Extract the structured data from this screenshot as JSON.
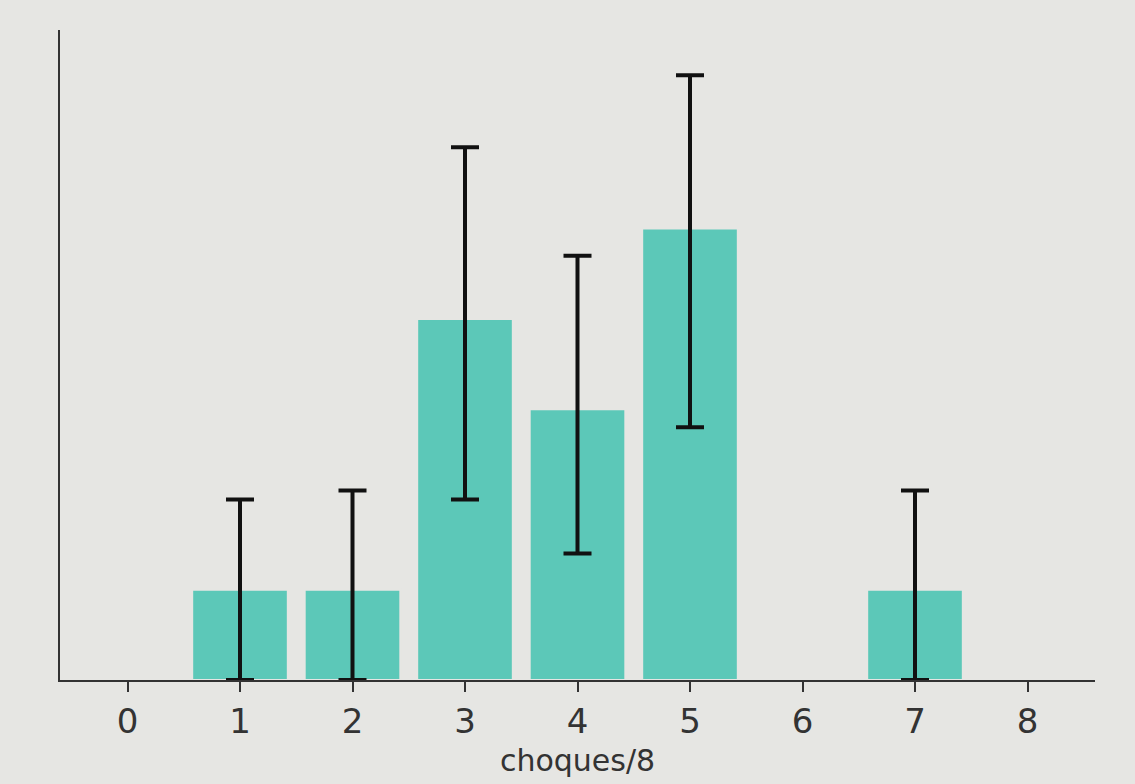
{
  "chart_data": {
    "type": "bar",
    "x_label": "choques/8",
    "x": [
      1,
      2,
      3,
      4,
      5,
      7
    ],
    "values": [
      1,
      1,
      4,
      3,
      5,
      1
    ],
    "error_plus": [
      1,
      1.1,
      1.9,
      1.7,
      1.7,
      1.1
    ],
    "error_minus": [
      1,
      1,
      2,
      1.6,
      2.2,
      1
    ],
    "color": "#5cc8b8",
    "xlim": [
      -0.6,
      8.6
    ],
    "xticks": [
      0,
      1,
      2,
      3,
      4,
      5,
      6,
      7,
      8
    ],
    "ylim": [
      0,
      7.2
    ],
    "yticks": [],
    "tick_labels": "x",
    "grid": false
  }
}
